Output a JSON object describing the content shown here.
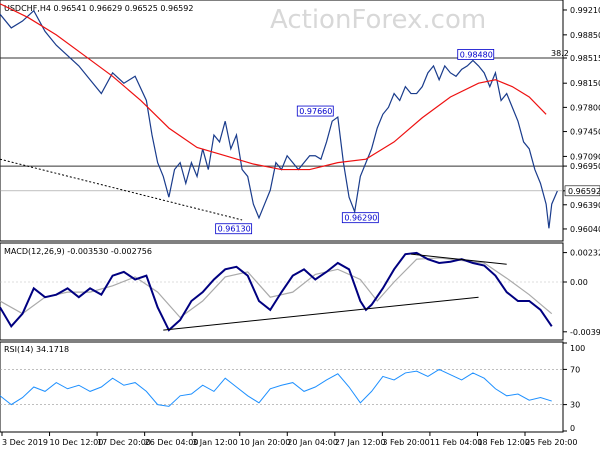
{
  "watermark": "ActionForex.com",
  "colors": {
    "price": "#1a3c8c",
    "ma": "#ee1111",
    "macd": "#000080",
    "signal": "#aaaaaa",
    "rsi": "#1e90ff",
    "level": "#333333",
    "annotation": "#0000cc"
  },
  "chart_data": [
    {
      "type": "line",
      "header": "USDCHF,H4  0.96541 0.96629 0.96525 0.96592",
      "ylim": [
        0.9588,
        0.9934
      ],
      "y_ticks": [
        "0.99210",
        "0.98850",
        "0.98515",
        "0.98150",
        "0.97800",
        "0.97450",
        "0.97090",
        "0.96950",
        "0.96592",
        "0.96390",
        "0.96040"
      ],
      "y_tick_values": [
        0.9921,
        0.9885,
        0.98515,
        0.9815,
        0.978,
        0.9745,
        0.9709,
        0.9695,
        0.96592,
        0.9639,
        0.9604
      ],
      "fibo_label": "38.2",
      "fibo_level": 0.98515,
      "horizontal_level": 0.9695,
      "price_label": "0.96592",
      "price_value": 0.96592,
      "annotations": [
        {
          "text": "0.96130",
          "x": 0.415,
          "y": 0.9613
        },
        {
          "text": "0.97660",
          "x": 0.56,
          "y": 0.9766
        },
        {
          "text": "0.96290",
          "x": 0.64,
          "y": 0.9629
        },
        {
          "text": "0.98480",
          "x": 0.845,
          "y": 0.9848
        }
      ],
      "price_series": [
        [
          0.0,
          0.9915
        ],
        [
          0.02,
          0.9895
        ],
        [
          0.04,
          0.9905
        ],
        [
          0.06,
          0.992
        ],
        [
          0.08,
          0.989
        ],
        [
          0.1,
          0.987
        ],
        [
          0.12,
          0.9855
        ],
        [
          0.14,
          0.984
        ],
        [
          0.16,
          0.982
        ],
        [
          0.18,
          0.98
        ],
        [
          0.2,
          0.983
        ],
        [
          0.22,
          0.9815
        ],
        [
          0.24,
          0.9825
        ],
        [
          0.26,
          0.979
        ],
        [
          0.27,
          0.974
        ],
        [
          0.28,
          0.97
        ],
        [
          0.29,
          0.968
        ],
        [
          0.3,
          0.965
        ],
        [
          0.31,
          0.969
        ],
        [
          0.32,
          0.97
        ],
        [
          0.33,
          0.967
        ],
        [
          0.34,
          0.97
        ],
        [
          0.35,
          0.968
        ],
        [
          0.36,
          0.972
        ],
        [
          0.37,
          0.969
        ],
        [
          0.38,
          0.974
        ],
        [
          0.39,
          0.973
        ],
        [
          0.4,
          0.976
        ],
        [
          0.41,
          0.972
        ],
        [
          0.42,
          0.974
        ],
        [
          0.43,
          0.969
        ],
        [
          0.44,
          0.968
        ],
        [
          0.45,
          0.964
        ],
        [
          0.46,
          0.962
        ],
        [
          0.47,
          0.964
        ],
        [
          0.48,
          0.966
        ],
        [
          0.49,
          0.97
        ],
        [
          0.5,
          0.969
        ],
        [
          0.51,
          0.971
        ],
        [
          0.52,
          0.97
        ],
        [
          0.53,
          0.969
        ],
        [
          0.54,
          0.97
        ],
        [
          0.55,
          0.971
        ],
        [
          0.56,
          0.971
        ],
        [
          0.57,
          0.9705
        ],
        [
          0.58,
          0.973
        ],
        [
          0.59,
          0.976
        ],
        [
          0.6,
          0.9766
        ],
        [
          0.61,
          0.97
        ],
        [
          0.62,
          0.965
        ],
        [
          0.63,
          0.9629
        ],
        [
          0.64,
          0.968
        ],
        [
          0.65,
          0.97
        ],
        [
          0.66,
          0.972
        ],
        [
          0.67,
          0.975
        ],
        [
          0.68,
          0.977
        ],
        [
          0.69,
          0.978
        ],
        [
          0.7,
          0.98
        ],
        [
          0.71,
          0.979
        ],
        [
          0.72,
          0.981
        ],
        [
          0.73,
          0.98
        ],
        [
          0.74,
          0.98
        ],
        [
          0.75,
          0.981
        ],
        [
          0.76,
          0.983
        ],
        [
          0.77,
          0.984
        ],
        [
          0.78,
          0.982
        ],
        [
          0.79,
          0.984
        ],
        [
          0.8,
          0.983
        ],
        [
          0.81,
          0.9825
        ],
        [
          0.82,
          0.9835
        ],
        [
          0.83,
          0.984
        ],
        [
          0.84,
          0.9848
        ],
        [
          0.85,
          0.984
        ],
        [
          0.86,
          0.983
        ],
        [
          0.87,
          0.981
        ],
        [
          0.88,
          0.983
        ],
        [
          0.89,
          0.979
        ],
        [
          0.9,
          0.98
        ],
        [
          0.91,
          0.978
        ],
        [
          0.92,
          0.976
        ],
        [
          0.93,
          0.973
        ],
        [
          0.94,
          0.972
        ],
        [
          0.95,
          0.969
        ],
        [
          0.96,
          0.967
        ],
        [
          0.97,
          0.964
        ],
        [
          0.975,
          0.9605
        ],
        [
          0.98,
          0.964
        ],
        [
          0.99,
          0.9659
        ]
      ],
      "ma_series": [
        [
          0.0,
          0.993
        ],
        [
          0.05,
          0.991
        ],
        [
          0.1,
          0.9885
        ],
        [
          0.15,
          0.9855
        ],
        [
          0.2,
          0.9825
        ],
        [
          0.25,
          0.979
        ],
        [
          0.3,
          0.975
        ],
        [
          0.35,
          0.9722
        ],
        [
          0.4,
          0.971
        ],
        [
          0.45,
          0.9698
        ],
        [
          0.5,
          0.969
        ],
        [
          0.55,
          0.969
        ],
        [
          0.6,
          0.97
        ],
        [
          0.65,
          0.9705
        ],
        [
          0.7,
          0.973
        ],
        [
          0.75,
          0.9765
        ],
        [
          0.8,
          0.9795
        ],
        [
          0.85,
          0.9815
        ],
        [
          0.88,
          0.982
        ],
        [
          0.91,
          0.981
        ],
        [
          0.94,
          0.9795
        ],
        [
          0.97,
          0.977
        ]
      ],
      "trend_line": [
        [
          0.0,
          0.9705
        ],
        [
          0.43,
          0.9617
        ]
      ]
    },
    {
      "type": "line",
      "header": "MACD(12,26,9) -0.003530 -0.002756",
      "ylim": [
        -0.0045,
        0.003
      ],
      "y_ticks": [
        "0.002322",
        "0.00",
        "-0.003932"
      ],
      "y_tick_values": [
        0.002322,
        0.0,
        -0.003932
      ],
      "macd_series": [
        [
          0.0,
          -0.002
        ],
        [
          0.02,
          -0.0035
        ],
        [
          0.04,
          -0.0025
        ],
        [
          0.06,
          -0.0005
        ],
        [
          0.08,
          -0.0012
        ],
        [
          0.1,
          -0.001
        ],
        [
          0.12,
          -0.0005
        ],
        [
          0.14,
          -0.0012
        ],
        [
          0.16,
          -0.0005
        ],
        [
          0.18,
          -0.001
        ],
        [
          0.2,
          0.0005
        ],
        [
          0.22,
          0.0008
        ],
        [
          0.24,
          0.0002
        ],
        [
          0.26,
          0.0005
        ],
        [
          0.28,
          -0.002
        ],
        [
          0.3,
          -0.0038
        ],
        [
          0.32,
          -0.003
        ],
        [
          0.34,
          -0.0015
        ],
        [
          0.36,
          -0.0008
        ],
        [
          0.38,
          0.0002
        ],
        [
          0.4,
          0.001
        ],
        [
          0.42,
          0.0012
        ],
        [
          0.44,
          0.0005
        ],
        [
          0.46,
          -0.0015
        ],
        [
          0.48,
          -0.0022
        ],
        [
          0.5,
          -0.0008
        ],
        [
          0.52,
          0.0005
        ],
        [
          0.54,
          0.001
        ],
        [
          0.56,
          0.0002
        ],
        [
          0.58,
          0.0008
        ],
        [
          0.6,
          0.0015
        ],
        [
          0.62,
          0.001
        ],
        [
          0.64,
          -0.0015
        ],
        [
          0.65,
          -0.0022
        ],
        [
          0.66,
          -0.0018
        ],
        [
          0.68,
          -0.0005
        ],
        [
          0.7,
          0.001
        ],
        [
          0.72,
          0.0022
        ],
        [
          0.74,
          0.0023
        ],
        [
          0.76,
          0.0018
        ],
        [
          0.78,
          0.0015
        ],
        [
          0.8,
          0.0016
        ],
        [
          0.82,
          0.0018
        ],
        [
          0.84,
          0.0015
        ],
        [
          0.86,
          0.0013
        ],
        [
          0.88,
          0.0005
        ],
        [
          0.9,
          -0.0008
        ],
        [
          0.92,
          -0.0015
        ],
        [
          0.94,
          -0.0015
        ],
        [
          0.96,
          -0.0022
        ],
        [
          0.98,
          -0.0035
        ]
      ],
      "signal_series": [
        [
          0.0,
          -0.0015
        ],
        [
          0.04,
          -0.0025
        ],
        [
          0.08,
          -0.0012
        ],
        [
          0.12,
          -0.0008
        ],
        [
          0.16,
          -0.0008
        ],
        [
          0.2,
          -0.0003
        ],
        [
          0.24,
          0.0004
        ],
        [
          0.28,
          -0.0008
        ],
        [
          0.32,
          -0.0028
        ],
        [
          0.36,
          -0.0015
        ],
        [
          0.4,
          0.0004
        ],
        [
          0.44,
          0.0008
        ],
        [
          0.48,
          -0.0012
        ],
        [
          0.52,
          -0.0008
        ],
        [
          0.56,
          0.0006
        ],
        [
          0.6,
          0.001
        ],
        [
          0.64,
          0.0002
        ],
        [
          0.67,
          -0.0015
        ],
        [
          0.7,
          0.0
        ],
        [
          0.74,
          0.0018
        ],
        [
          0.78,
          0.0019
        ],
        [
          0.82,
          0.0017
        ],
        [
          0.86,
          0.0015
        ],
        [
          0.9,
          0.0003
        ],
        [
          0.94,
          -0.001
        ],
        [
          0.98,
          -0.0025
        ]
      ],
      "trend_lines": [
        [
          [
            0.29,
            -0.0038
          ],
          [
            0.85,
            -0.0012
          ]
        ],
        [
          [
            0.73,
            0.0022
          ],
          [
            0.9,
            0.0014
          ]
        ]
      ]
    },
    {
      "type": "line",
      "header": "RSI(14) 34.1718",
      "ylim": [
        0,
        100
      ],
      "y_ticks": [
        "100",
        "70",
        "30",
        "0"
      ],
      "y_tick_values": [
        100,
        70,
        30,
        0
      ],
      "rsi_series": [
        [
          0.0,
          40
        ],
        [
          0.02,
          30
        ],
        [
          0.04,
          38
        ],
        [
          0.06,
          50
        ],
        [
          0.08,
          45
        ],
        [
          0.1,
          55
        ],
        [
          0.12,
          48
        ],
        [
          0.14,
          52
        ],
        [
          0.16,
          45
        ],
        [
          0.18,
          50
        ],
        [
          0.2,
          60
        ],
        [
          0.22,
          52
        ],
        [
          0.24,
          55
        ],
        [
          0.26,
          45
        ],
        [
          0.28,
          30
        ],
        [
          0.3,
          28
        ],
        [
          0.32,
          40
        ],
        [
          0.34,
          42
        ],
        [
          0.36,
          52
        ],
        [
          0.38,
          45
        ],
        [
          0.4,
          60
        ],
        [
          0.42,
          50
        ],
        [
          0.44,
          40
        ],
        [
          0.46,
          32
        ],
        [
          0.48,
          48
        ],
        [
          0.5,
          52
        ],
        [
          0.52,
          55
        ],
        [
          0.54,
          45
        ],
        [
          0.56,
          50
        ],
        [
          0.58,
          58
        ],
        [
          0.6,
          65
        ],
        [
          0.62,
          50
        ],
        [
          0.64,
          32
        ],
        [
          0.66,
          45
        ],
        [
          0.68,
          62
        ],
        [
          0.7,
          58
        ],
        [
          0.72,
          66
        ],
        [
          0.74,
          68
        ],
        [
          0.76,
          62
        ],
        [
          0.78,
          70
        ],
        [
          0.8,
          64
        ],
        [
          0.82,
          58
        ],
        [
          0.84,
          66
        ],
        [
          0.86,
          60
        ],
        [
          0.88,
          48
        ],
        [
          0.9,
          40
        ],
        [
          0.92,
          42
        ],
        [
          0.94,
          35
        ],
        [
          0.96,
          38
        ],
        [
          0.98,
          34
        ]
      ],
      "x_ticks": [
        "3 Dec 2019",
        "10 Dec 12:00",
        "17 Dec 20:00",
        "26 Dec 04:00",
        "3 Jan 12:00",
        "10 Jan 20:00",
        "20 Jan 04:00",
        "27 Jan 12:00",
        "3 Feb 20:00",
        "11 Feb 04:00",
        "18 Feb 12:00",
        "25 Feb 20:00"
      ]
    }
  ]
}
